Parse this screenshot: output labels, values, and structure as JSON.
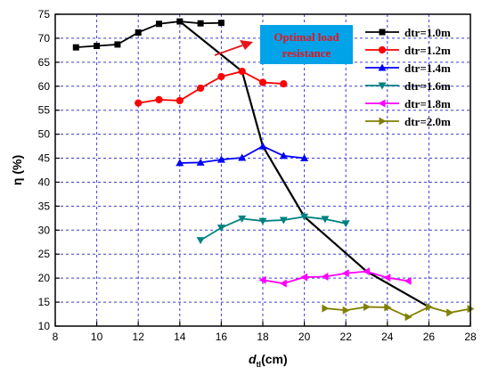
{
  "chart_data": {
    "type": "line",
    "title": "",
    "xlabel": "d",
    "xlabel_subscript": "tl",
    "xlabel_unit": "(cm)",
    "ylabel": "η (%)",
    "xlim": [
      8,
      28
    ],
    "ylim": [
      10,
      75
    ],
    "xticks": [
      8,
      10,
      12,
      14,
      16,
      18,
      20,
      22,
      24,
      26,
      28
    ],
    "yticks": [
      10,
      15,
      20,
      25,
      30,
      35,
      40,
      45,
      50,
      55,
      60,
      65,
      70,
      75
    ],
    "grid": true,
    "legend_position": "right",
    "series": [
      {
        "name": "dtr=1.0m",
        "color": "#000000",
        "marker": "square",
        "x": [
          9,
          10,
          11,
          12,
          13,
          14,
          15,
          16
        ],
        "y": [
          68.1,
          68.4,
          68.7,
          71.2,
          73.0,
          73.5,
          73.1,
          73.2
        ]
      },
      {
        "name": "dtr=1.2m",
        "color": "#ff0000",
        "marker": "circle",
        "x": [
          12,
          13,
          14,
          15,
          16,
          17,
          18,
          19
        ],
        "y": [
          56.5,
          57.2,
          57.0,
          59.6,
          62.0,
          63.1,
          60.8,
          60.5
        ]
      },
      {
        "name": "dtr=1.4m",
        "color": "#0000ff",
        "marker": "triangle-up",
        "x": [
          14,
          15,
          16,
          17,
          18,
          19,
          20
        ],
        "y": [
          44.0,
          44.1,
          44.7,
          45.1,
          47.5,
          45.5,
          45.0
        ]
      },
      {
        "name": "dtr=1.6m",
        "color": "#008080",
        "marker": "triangle-down",
        "x": [
          15,
          16,
          17,
          18,
          19,
          20,
          21,
          22
        ],
        "y": [
          27.9,
          30.5,
          32.4,
          31.9,
          32.1,
          32.8,
          32.3,
          31.4
        ]
      },
      {
        "name": "dtr=1.8m",
        "color": "#ff00ff",
        "marker": "triangle-left",
        "x": [
          18,
          19,
          20,
          21,
          22,
          23,
          24,
          25
        ],
        "y": [
          19.6,
          18.9,
          20.2,
          20.3,
          21.0,
          21.4,
          20.1,
          19.4
        ]
      },
      {
        "name": "dtr=2.0m",
        "color": "#808000",
        "marker": "triangle-right",
        "x": [
          21,
          22,
          23,
          24,
          25,
          26,
          27,
          28
        ],
        "y": [
          13.7,
          13.3,
          14.0,
          13.9,
          11.9,
          14.0,
          12.8,
          13.6
        ]
      }
    ],
    "optimal_curve": {
      "color": "#000000",
      "x": [
        14,
        17,
        18,
        20,
        23,
        26
      ],
      "y": [
        73.5,
        63.1,
        47.5,
        32.8,
        21.4,
        14.0
      ]
    },
    "annotation": {
      "text_line1": "Optimal load",
      "text_line2": "resistance",
      "box_color": "#00a2e8",
      "text_color": "#e8141c",
      "arrow_color": "#e8141c"
    }
  }
}
